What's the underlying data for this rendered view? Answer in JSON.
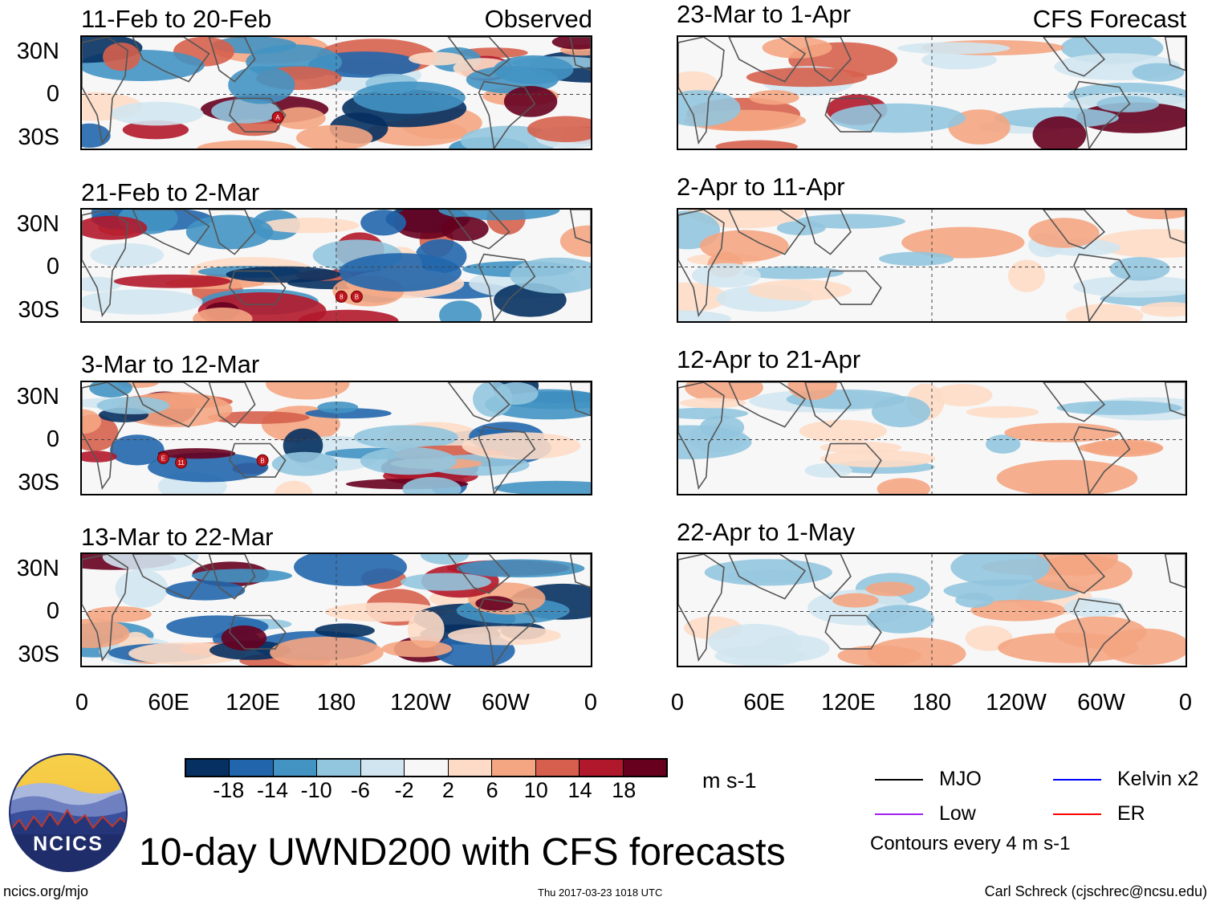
{
  "title": "10-day UWND200 with CFS forecasts",
  "observed_label": "Observed",
  "forecast_label": "CFS Forecast",
  "panels_observed": [
    {
      "period": "11-Feb to 20-Feb"
    },
    {
      "period": "21-Feb to 2-Mar"
    },
    {
      "period": "3-Mar to 12-Mar"
    },
    {
      "period": "13-Mar to 22-Mar"
    }
  ],
  "panels_forecast": [
    {
      "period": "23-Mar to 1-Apr"
    },
    {
      "period": "2-Apr to 11-Apr"
    },
    {
      "period": "12-Apr to 21-Apr"
    },
    {
      "period": "22-Apr to 1-May"
    }
  ],
  "y_labels": [
    "30N",
    "0",
    "30S"
  ],
  "x_labels": [
    "0",
    "60E",
    "120E",
    "180",
    "120W",
    "60W",
    "0"
  ],
  "colorbar": {
    "labels": [
      "-18",
      "-14",
      "-10",
      "-6",
      "-2",
      "2",
      "6",
      "10",
      "14",
      "18"
    ],
    "units": "m s-1",
    "colors": [
      "#053061",
      "#2166ac",
      "#4393c3",
      "#92c5de",
      "#d1e5f0",
      "#f7f7f7",
      "#fddbc7",
      "#f4a582",
      "#d6604d",
      "#b2182b",
      "#67001f"
    ]
  },
  "legend": {
    "mjo": {
      "label": "MJO",
      "color": "#000000"
    },
    "kelvin": {
      "label": "Kelvin x2",
      "color": "#0000ff"
    },
    "low": {
      "label": "Low",
      "color": "#a020f0"
    },
    "er": {
      "label": "ER",
      "color": "#ff0000"
    },
    "contours_note": "Contours every 4 m s-1"
  },
  "logo_text": "NCICS",
  "url": "ncics.org/mjo",
  "timestamp": "Thu 2017-03-23 1018 UTC",
  "author": "Carl Schreck (cjschrec@ncsu.edu)",
  "storm_markers": [
    {
      "panel": 0,
      "labels": [
        "A"
      ]
    },
    {
      "panel": 1,
      "labels": [
        "8",
        "B"
      ]
    },
    {
      "panel": 2,
      "labels": [
        "E",
        "11",
        "B"
      ]
    }
  ]
}
